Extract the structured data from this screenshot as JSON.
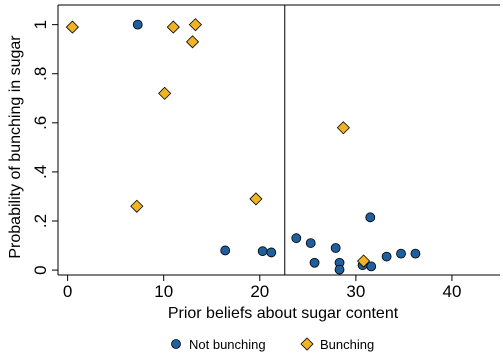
{
  "chart_data": {
    "type": "scatter",
    "xlabel": "Prior beliefs about sugar content",
    "ylabel": "Probability of bunching in sugar",
    "xlim": [
      -1,
      45
    ],
    "ylim": [
      -0.02,
      1.08
    ],
    "x_ticks": [
      0,
      10,
      20,
      30,
      40
    ],
    "y_ticks": [
      0,
      0.2,
      0.4,
      0.6,
      0.8,
      1
    ],
    "y_tick_labels": [
      "0",
      ".2",
      ".4",
      ".6",
      ".8",
      "1"
    ],
    "y_tick_orientation": "vertical",
    "grid": false,
    "legend_placement": "bottom",
    "reference_line_x": 22.6,
    "series": [
      {
        "name": "Not bunching",
        "marker": "circle",
        "color": "#1f5f9e",
        "points": [
          [
            7.3,
            1.0
          ],
          [
            16.4,
            0.08
          ],
          [
            20.3,
            0.077
          ],
          [
            21.2,
            0.072
          ],
          [
            23.8,
            0.13
          ],
          [
            25.3,
            0.11
          ],
          [
            25.7,
            0.03
          ],
          [
            27.9,
            0.09
          ],
          [
            28.3,
            0.03
          ],
          [
            28.3,
            0.002
          ],
          [
            30.7,
            0.02
          ],
          [
            31.5,
            0.215
          ],
          [
            31.6,
            0.015
          ],
          [
            33.2,
            0.055
          ],
          [
            34.7,
            0.067
          ],
          [
            36.2,
            0.067
          ]
        ]
      },
      {
        "name": "Bunching",
        "marker": "diamond",
        "color": "#f0b323",
        "points": [
          [
            0.5,
            0.99
          ],
          [
            7.2,
            0.26
          ],
          [
            10.1,
            0.72
          ],
          [
            11.0,
            0.99
          ],
          [
            13.0,
            0.93
          ],
          [
            13.3,
            1.0
          ],
          [
            19.6,
            0.29
          ],
          [
            28.7,
            0.58
          ],
          [
            30.8,
            0.037
          ]
        ]
      }
    ]
  }
}
